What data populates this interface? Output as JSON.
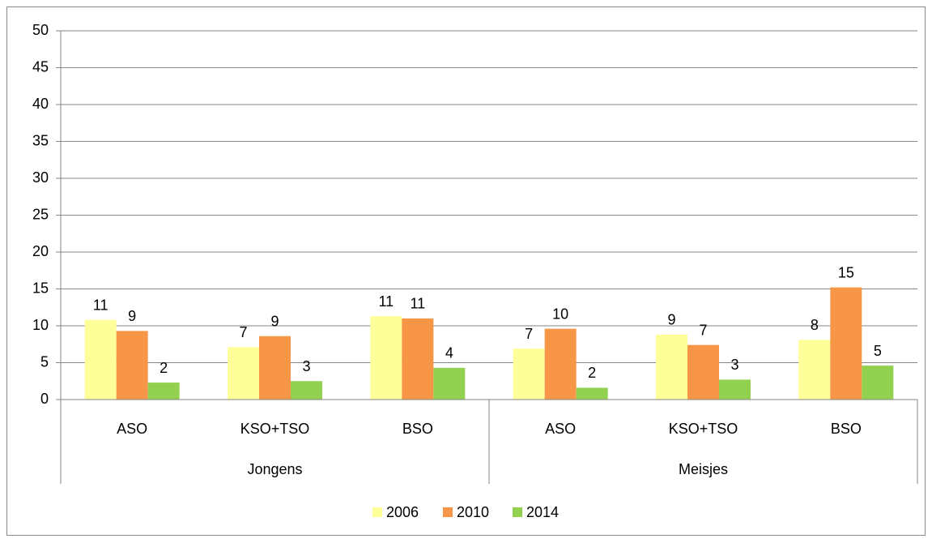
{
  "chart_data": {
    "type": "bar",
    "groups": [
      {
        "label": "Jongens",
        "categories": [
          "ASO",
          "KSO+TSO",
          "BSO"
        ]
      },
      {
        "label": "Meisjes",
        "categories": [
          "ASO",
          "KSO+TSO",
          "BSO"
        ]
      }
    ],
    "series": [
      {
        "name": "2006",
        "color": "#ffff99",
        "values": [
          10.8,
          7.1,
          11.3,
          6.9,
          8.8,
          8.1
        ],
        "value_labels": [
          "11",
          "7",
          "11",
          "7",
          "9",
          "8"
        ]
      },
      {
        "name": "2010",
        "color": "#f79646",
        "values": [
          9.3,
          8.6,
          11.0,
          9.6,
          7.4,
          15.2
        ],
        "value_labels": [
          "9",
          "9",
          "11",
          "10",
          "7",
          "15"
        ]
      },
      {
        "name": "2014",
        "color": "#92d050",
        "values": [
          2.3,
          2.5,
          4.3,
          1.6,
          2.7,
          4.6
        ],
        "value_labels": [
          "2",
          "3",
          "4",
          "2",
          "3",
          "5"
        ]
      }
    ],
    "ylim": [
      0,
      50
    ],
    "yticks": [
      0,
      5,
      10,
      15,
      20,
      25,
      30,
      35,
      40,
      45,
      50
    ],
    "grid": true,
    "legend": "bottom"
  }
}
